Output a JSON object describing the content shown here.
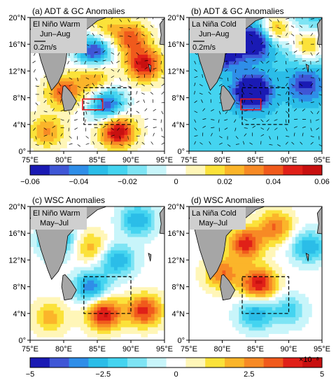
{
  "chart_data": [
    {
      "type": "heatmap",
      "panel_label": "(a) ADT & GC Anomalies",
      "inset_lines": [
        "El Niño Warm",
        "Jun–Aug"
      ],
      "vector_scale": "0.2m/s",
      "x_ticks": [
        "75°E",
        "80°E",
        "85°E",
        "90°E",
        "95°E"
      ],
      "y_ticks": [
        "0°",
        "4°N",
        "8°N",
        "12°N",
        "16°N",
        "20°N"
      ],
      "xlim": [
        75,
        95
      ],
      "ylim": [
        0,
        20
      ],
      "features": {
        "vectors": true,
        "red_box": true,
        "dashed_box": true
      },
      "anomaly_centers": [
        {
          "lon": 84.5,
          "lat": 15,
          "value": -0.055
        },
        {
          "lon": 86.5,
          "lat": 7,
          "value": -0.05
        },
        {
          "lon": 84.5,
          "lat": 11,
          "value": 0.03
        },
        {
          "lon": 86,
          "lat": 18.5,
          "value": 0.02
        },
        {
          "lon": 92,
          "lat": 13,
          "value": 0.055
        },
        {
          "lon": 90,
          "lat": 17,
          "value": 0.04
        },
        {
          "lon": 88,
          "lat": 3,
          "value": 0.06
        },
        {
          "lon": 80,
          "lat": 9,
          "value": 0.04
        },
        {
          "lon": 77.5,
          "lat": 3,
          "value": 0.03
        }
      ]
    },
    {
      "type": "heatmap",
      "panel_label": "(b) ADT & GC Anomalies",
      "inset_lines": [
        "La Niña Cold",
        "Jun–Aug"
      ],
      "vector_scale": "0.2m/s",
      "x_ticks": [
        "75°E",
        "80°E",
        "85°E",
        "90°E",
        "95°E"
      ],
      "y_ticks": [
        "0°",
        "4°N",
        "8°N",
        "12°N",
        "16°N",
        "20°N"
      ],
      "xlim": [
        75,
        95
      ],
      "ylim": [
        0,
        20
      ],
      "features": {
        "vectors": true,
        "red_box": true,
        "dashed_box": true
      },
      "anomaly_centers": [
        {
          "lon": 88,
          "lat": 18.5,
          "value": 0.05
        },
        {
          "lon": 85,
          "lat": 16.5,
          "value": -0.05
        },
        {
          "lon": 84.5,
          "lat": 9,
          "value": -0.06
        },
        {
          "lon": 93,
          "lat": 16,
          "value": 0.045
        },
        {
          "lon": 80.5,
          "lat": 15,
          "value": -0.045
        },
        {
          "lon": 92.5,
          "lat": 10,
          "value": -0.03
        }
      ],
      "background_value": -0.025
    },
    {
      "type": "heatmap",
      "panel_label": "(c) WSC Anomalies",
      "inset_lines": [
        "El Niño Warm",
        "May–Jul"
      ],
      "x_ticks": [
        "75°E",
        "80°E",
        "85°E",
        "90°E",
        "95°E"
      ],
      "y_ticks": [
        "0°",
        "4°N",
        "8°N",
        "12°N",
        "16°N",
        "20°N"
      ],
      "xlim": [
        75,
        95
      ],
      "ylim": [
        0,
        20
      ],
      "features": {
        "vectors": false,
        "red_box": false,
        "dashed_box": true
      },
      "anomaly_centers": [
        {
          "lon": 86,
          "lat": 4,
          "value": 4.5
        },
        {
          "lon": 92,
          "lat": 4.5,
          "value": 4
        },
        {
          "lon": 78,
          "lat": 3.5,
          "value": 2
        },
        {
          "lon": 84,
          "lat": 8,
          "value": -3.5
        },
        {
          "lon": 79,
          "lat": 15,
          "value": -3.5
        },
        {
          "lon": 88,
          "lat": 12,
          "value": -3
        },
        {
          "lon": 91,
          "lat": 18,
          "value": -3
        },
        {
          "lon": 84,
          "lat": 14,
          "value": 2
        }
      ]
    },
    {
      "type": "heatmap",
      "panel_label": "(d) WSC Anomalies",
      "inset_lines": [
        "La Niña Cold",
        "May–Jul"
      ],
      "x_ticks": [
        "75°E",
        "80°E",
        "85°E",
        "90°E",
        "95°E"
      ],
      "y_ticks": [
        "0°",
        "4°N",
        "8°N",
        "12°N",
        "16°N",
        "20°N"
      ],
      "xlim": [
        75,
        95
      ],
      "ylim": [
        0,
        20
      ],
      "features": {
        "vectors": false,
        "red_box": false,
        "dashed_box": true
      },
      "anomaly_centers": [
        {
          "lon": 85.5,
          "lat": 8.5,
          "value": 4.5
        },
        {
          "lon": 83.5,
          "lat": 14.5,
          "value": 4
        },
        {
          "lon": 80,
          "lat": 10,
          "value": 3
        },
        {
          "lon": 85,
          "lat": 4,
          "value": -3
        },
        {
          "lon": 90,
          "lat": 4.5,
          "value": -2
        },
        {
          "lon": 88,
          "lat": 17,
          "value": 3
        },
        {
          "lon": 93,
          "lat": 14,
          "value": -3
        }
      ]
    }
  ],
  "colorbar_top": {
    "ticks": [
      "−0.06",
      "−0.04",
      "−0.02",
      "0",
      "0.02",
      "0.04",
      "0.06"
    ],
    "range": [
      -0.06,
      0.06
    ]
  },
  "colorbar_bottom": {
    "ticks": [
      "−5",
      "−2.5",
      "0",
      "2.5",
      "5"
    ],
    "range": [
      -5,
      5
    ],
    "multiplier": "×10⁻⁸"
  },
  "colors": {
    "palette": [
      "#1a1ab4",
      "#3f57d6",
      "#2f8ee8",
      "#2bbde8",
      "#44d4f0",
      "#7ee4f4",
      "#c8f5fa",
      "#ffffff",
      "#fff6b8",
      "#fbe23a",
      "#fbb52a",
      "#f78a25",
      "#f05a1c",
      "#e02018",
      "#c81010"
    ],
    "land": "#a6a6a6",
    "box_red": "#e8161a"
  }
}
